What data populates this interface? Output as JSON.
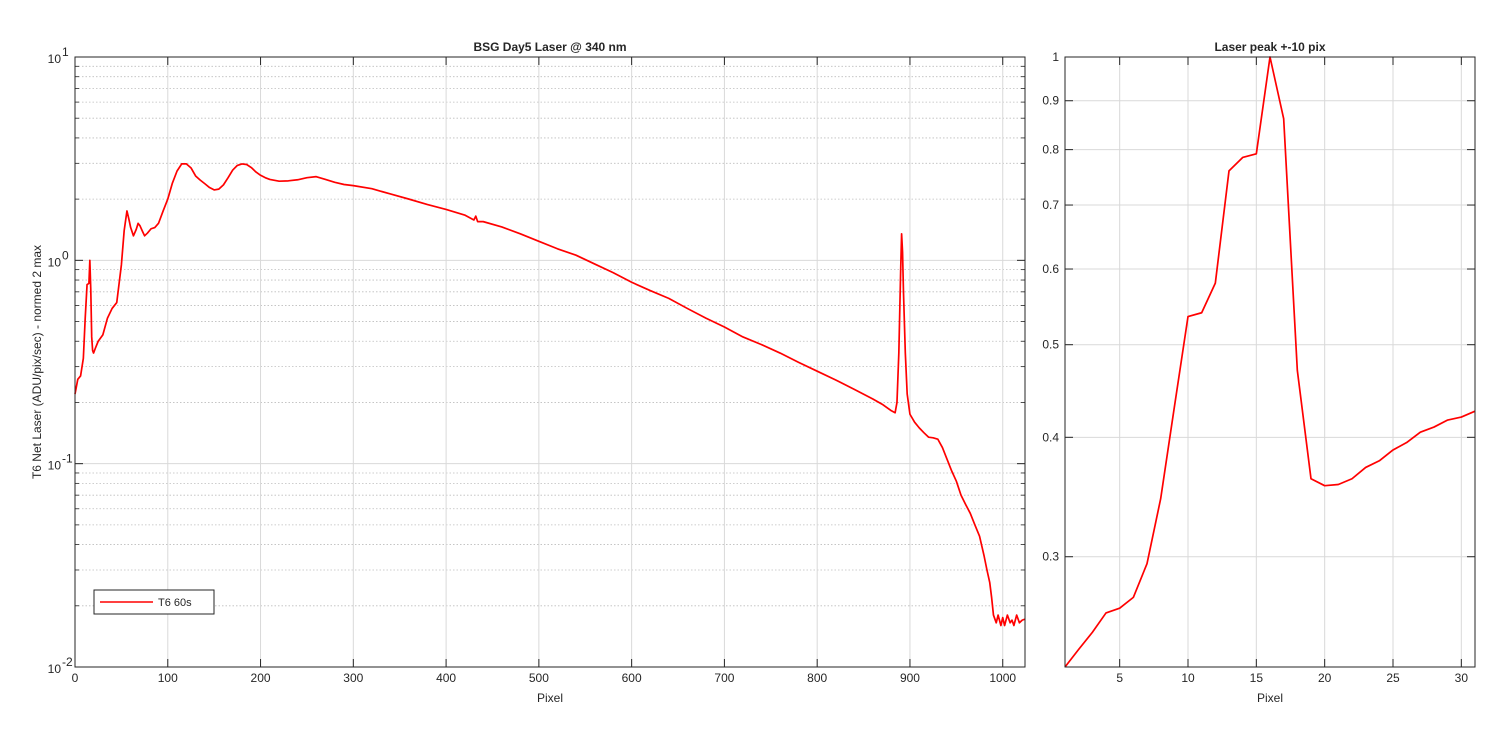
{
  "chart_data": [
    {
      "type": "line",
      "title": "BSG  Day5 Laser @ 340 nm",
      "xlabel": "Pixel",
      "ylabel": "T6 Net Laser (ADU/pix/sec) - normed 2 max",
      "xlim": [
        0,
        1024
      ],
      "ylim": [
        0.01,
        10
      ],
      "yscale": "log",
      "grid": "on",
      "x_ticks": [
        {
          "value": 0,
          "label": "0"
        },
        {
          "value": 100,
          "label": "100"
        },
        {
          "value": 200,
          "label": "200"
        },
        {
          "value": 300,
          "label": "300"
        },
        {
          "value": 400,
          "label": "400"
        },
        {
          "value": 500,
          "label": "500"
        },
        {
          "value": 600,
          "label": "600"
        },
        {
          "value": 700,
          "label": "700"
        },
        {
          "value": 800,
          "label": "800"
        },
        {
          "value": 900,
          "label": "900"
        },
        {
          "value": 1000,
          "label": "1000"
        }
      ],
      "y_ticks": [
        {
          "value": 0.01,
          "base": "10",
          "exp": "-2"
        },
        {
          "value": 0.1,
          "base": "10",
          "exp": "-1"
        },
        {
          "value": 1,
          "base": "10",
          "exp": "0"
        },
        {
          "value": 10,
          "base": "10",
          "exp": "1"
        }
      ],
      "legend": {
        "position": "bottom-left",
        "entries": [
          "T6 60s"
        ]
      },
      "series": [
        {
          "name": "T6 60s",
          "color": "#ff0000",
          "x": [
            0,
            3,
            6,
            9,
            11,
            13,
            15,
            16,
            17,
            18,
            19,
            20,
            22,
            25,
            30,
            35,
            40,
            45,
            50,
            53,
            56,
            58,
            60,
            63,
            66,
            68,
            70,
            73,
            75,
            78,
            82,
            86,
            90,
            95,
            100,
            105,
            110,
            115,
            120,
            125,
            130,
            135,
            140,
            145,
            150,
            155,
            160,
            165,
            170,
            175,
            180,
            185,
            190,
            195,
            200,
            205,
            210,
            220,
            230,
            240,
            250,
            260,
            270,
            280,
            290,
            300,
            320,
            340,
            360,
            380,
            400,
            420,
            430,
            432,
            434,
            440,
            460,
            480,
            500,
            520,
            540,
            560,
            580,
            600,
            620,
            640,
            660,
            680,
            700,
            720,
            740,
            760,
            780,
            800,
            820,
            840,
            860,
            870,
            880,
            884,
            886,
            888,
            890,
            891,
            892,
            893,
            895,
            897,
            900,
            905,
            910,
            915,
            920,
            925,
            930,
            935,
            940,
            945,
            950,
            955,
            960,
            965,
            970,
            975,
            980,
            983,
            986,
            988,
            990,
            993,
            995,
            998,
            1000,
            1002,
            1005,
            1008,
            1010,
            1012,
            1015,
            1018,
            1021,
            1024
          ],
          "y": [
            0.22,
            0.26,
            0.27,
            0.33,
            0.52,
            0.76,
            0.77,
            1.0,
            0.72,
            0.42,
            0.36,
            0.35,
            0.37,
            0.4,
            0.43,
            0.52,
            0.58,
            0.62,
            0.95,
            1.4,
            1.75,
            1.6,
            1.45,
            1.32,
            1.42,
            1.52,
            1.48,
            1.38,
            1.32,
            1.36,
            1.43,
            1.45,
            1.52,
            1.75,
            2.0,
            2.4,
            2.75,
            2.98,
            2.98,
            2.85,
            2.6,
            2.48,
            2.38,
            2.28,
            2.22,
            2.24,
            2.35,
            2.55,
            2.78,
            2.93,
            2.98,
            2.96,
            2.86,
            2.72,
            2.62,
            2.55,
            2.5,
            2.45,
            2.46,
            2.49,
            2.55,
            2.58,
            2.5,
            2.42,
            2.36,
            2.33,
            2.25,
            2.12,
            2.0,
            1.88,
            1.78,
            1.67,
            1.58,
            1.65,
            1.55,
            1.55,
            1.46,
            1.35,
            1.24,
            1.14,
            1.06,
            0.96,
            0.87,
            0.78,
            0.71,
            0.65,
            0.58,
            0.52,
            0.47,
            0.42,
            0.385,
            0.35,
            0.315,
            0.285,
            0.258,
            0.232,
            0.208,
            0.196,
            0.182,
            0.178,
            0.2,
            0.35,
            0.9,
            1.35,
            1.1,
            0.7,
            0.35,
            0.22,
            0.175,
            0.16,
            0.15,
            0.142,
            0.135,
            0.134,
            0.132,
            0.12,
            0.105,
            0.092,
            0.082,
            0.07,
            0.063,
            0.057,
            0.05,
            0.044,
            0.035,
            0.03,
            0.026,
            0.022,
            0.018,
            0.0165,
            0.018,
            0.016,
            0.0175,
            0.016,
            0.018,
            0.0165,
            0.017,
            0.016,
            0.018,
            0.0165,
            0.017,
            0.0172
          ]
        }
      ]
    },
    {
      "type": "line",
      "title": "Laser peak +-10 pix",
      "xlabel": "Pixel",
      "ylabel": "",
      "xlim": [
        1,
        31
      ],
      "ylim": [
        0.23,
        1
      ],
      "yscale": "log",
      "grid": "on",
      "x_ticks": [
        {
          "value": 5,
          "label": "5"
        },
        {
          "value": 10,
          "label": "10"
        },
        {
          "value": 15,
          "label": "15"
        },
        {
          "value": 20,
          "label": "20"
        },
        {
          "value": 25,
          "label": "25"
        },
        {
          "value": 30,
          "label": "30"
        }
      ],
      "y_ticks": [
        {
          "value": 0.3,
          "label": "0.3"
        },
        {
          "value": 0.4,
          "label": "0.4"
        },
        {
          "value": 0.5,
          "label": "0.5"
        },
        {
          "value": 0.6,
          "label": "0.6"
        },
        {
          "value": 0.7,
          "label": "0.7"
        },
        {
          "value": 0.8,
          "label": "0.8"
        },
        {
          "value": 0.9,
          "label": "0.9"
        },
        {
          "value": 1,
          "label": "1"
        }
      ],
      "series": [
        {
          "color": "#ff0000",
          "x": [
            1,
            2,
            3,
            4,
            5,
            6,
            7,
            8,
            9,
            10,
            11,
            12,
            13,
            14,
            15,
            16,
            17,
            18,
            19,
            20,
            21,
            22,
            23,
            24,
            25,
            26,
            27,
            28,
            29,
            30,
            31
          ],
          "y": [
            0.23,
            0.24,
            0.25,
            0.262,
            0.265,
            0.272,
            0.295,
            0.345,
            0.43,
            0.535,
            0.54,
            0.58,
            0.76,
            0.785,
            0.792,
            1.0,
            0.862,
            0.47,
            0.362,
            0.356,
            0.357,
            0.362,
            0.372,
            0.378,
            0.388,
            0.395,
            0.405,
            0.41,
            0.417,
            0.42,
            0.426
          ]
        }
      ]
    }
  ]
}
